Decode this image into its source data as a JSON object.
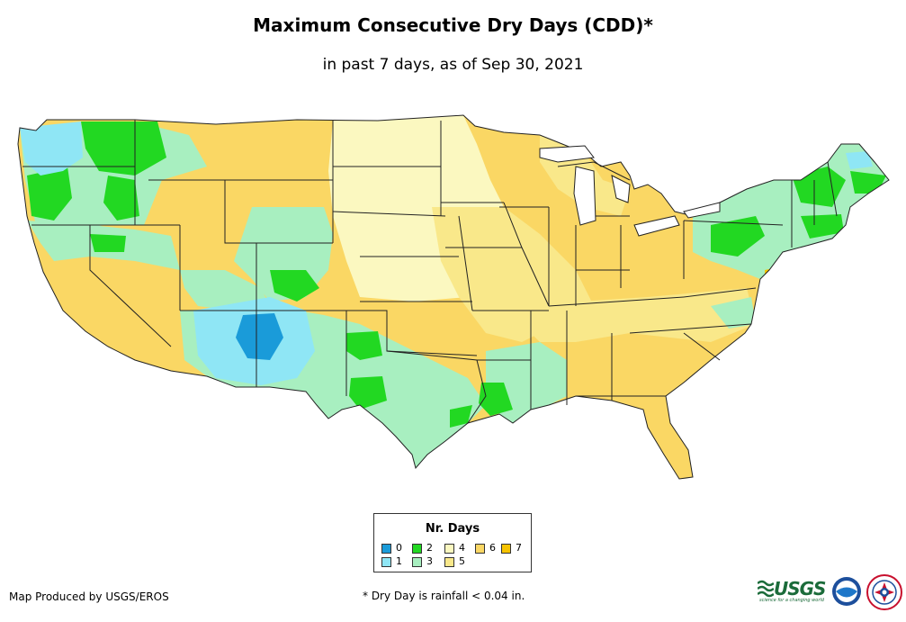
{
  "title": "Maximum Consecutive Dry Days (CDD)*",
  "subtitle": "in past 7 days, as of Sep 30, 2021",
  "legend": {
    "title": "Nr. Days",
    "items": [
      {
        "label": "0",
        "color": "#1a9bd9"
      },
      {
        "label": "1",
        "color": "#8fe6f5"
      },
      {
        "label": "2",
        "color": "#22d822"
      },
      {
        "label": "3",
        "color": "#a8efc0"
      },
      {
        "label": "4",
        "color": "#fbf8c0"
      },
      {
        "label": "5",
        "color": "#f9e88a"
      },
      {
        "label": "6",
        "color": "#fad764"
      },
      {
        "label": "7",
        "color": "#f6c300"
      }
    ]
  },
  "credit": "Map Produced by USGS/EROS",
  "footnote": "* Dry Day is rainfall < 0.04 in.",
  "logos": {
    "usgs": "USGS",
    "usgs_tagline": "science for a changing world"
  },
  "icons": [
    "usgs-logo",
    "noaa-logo-icon",
    "nws-logo-icon"
  ]
}
